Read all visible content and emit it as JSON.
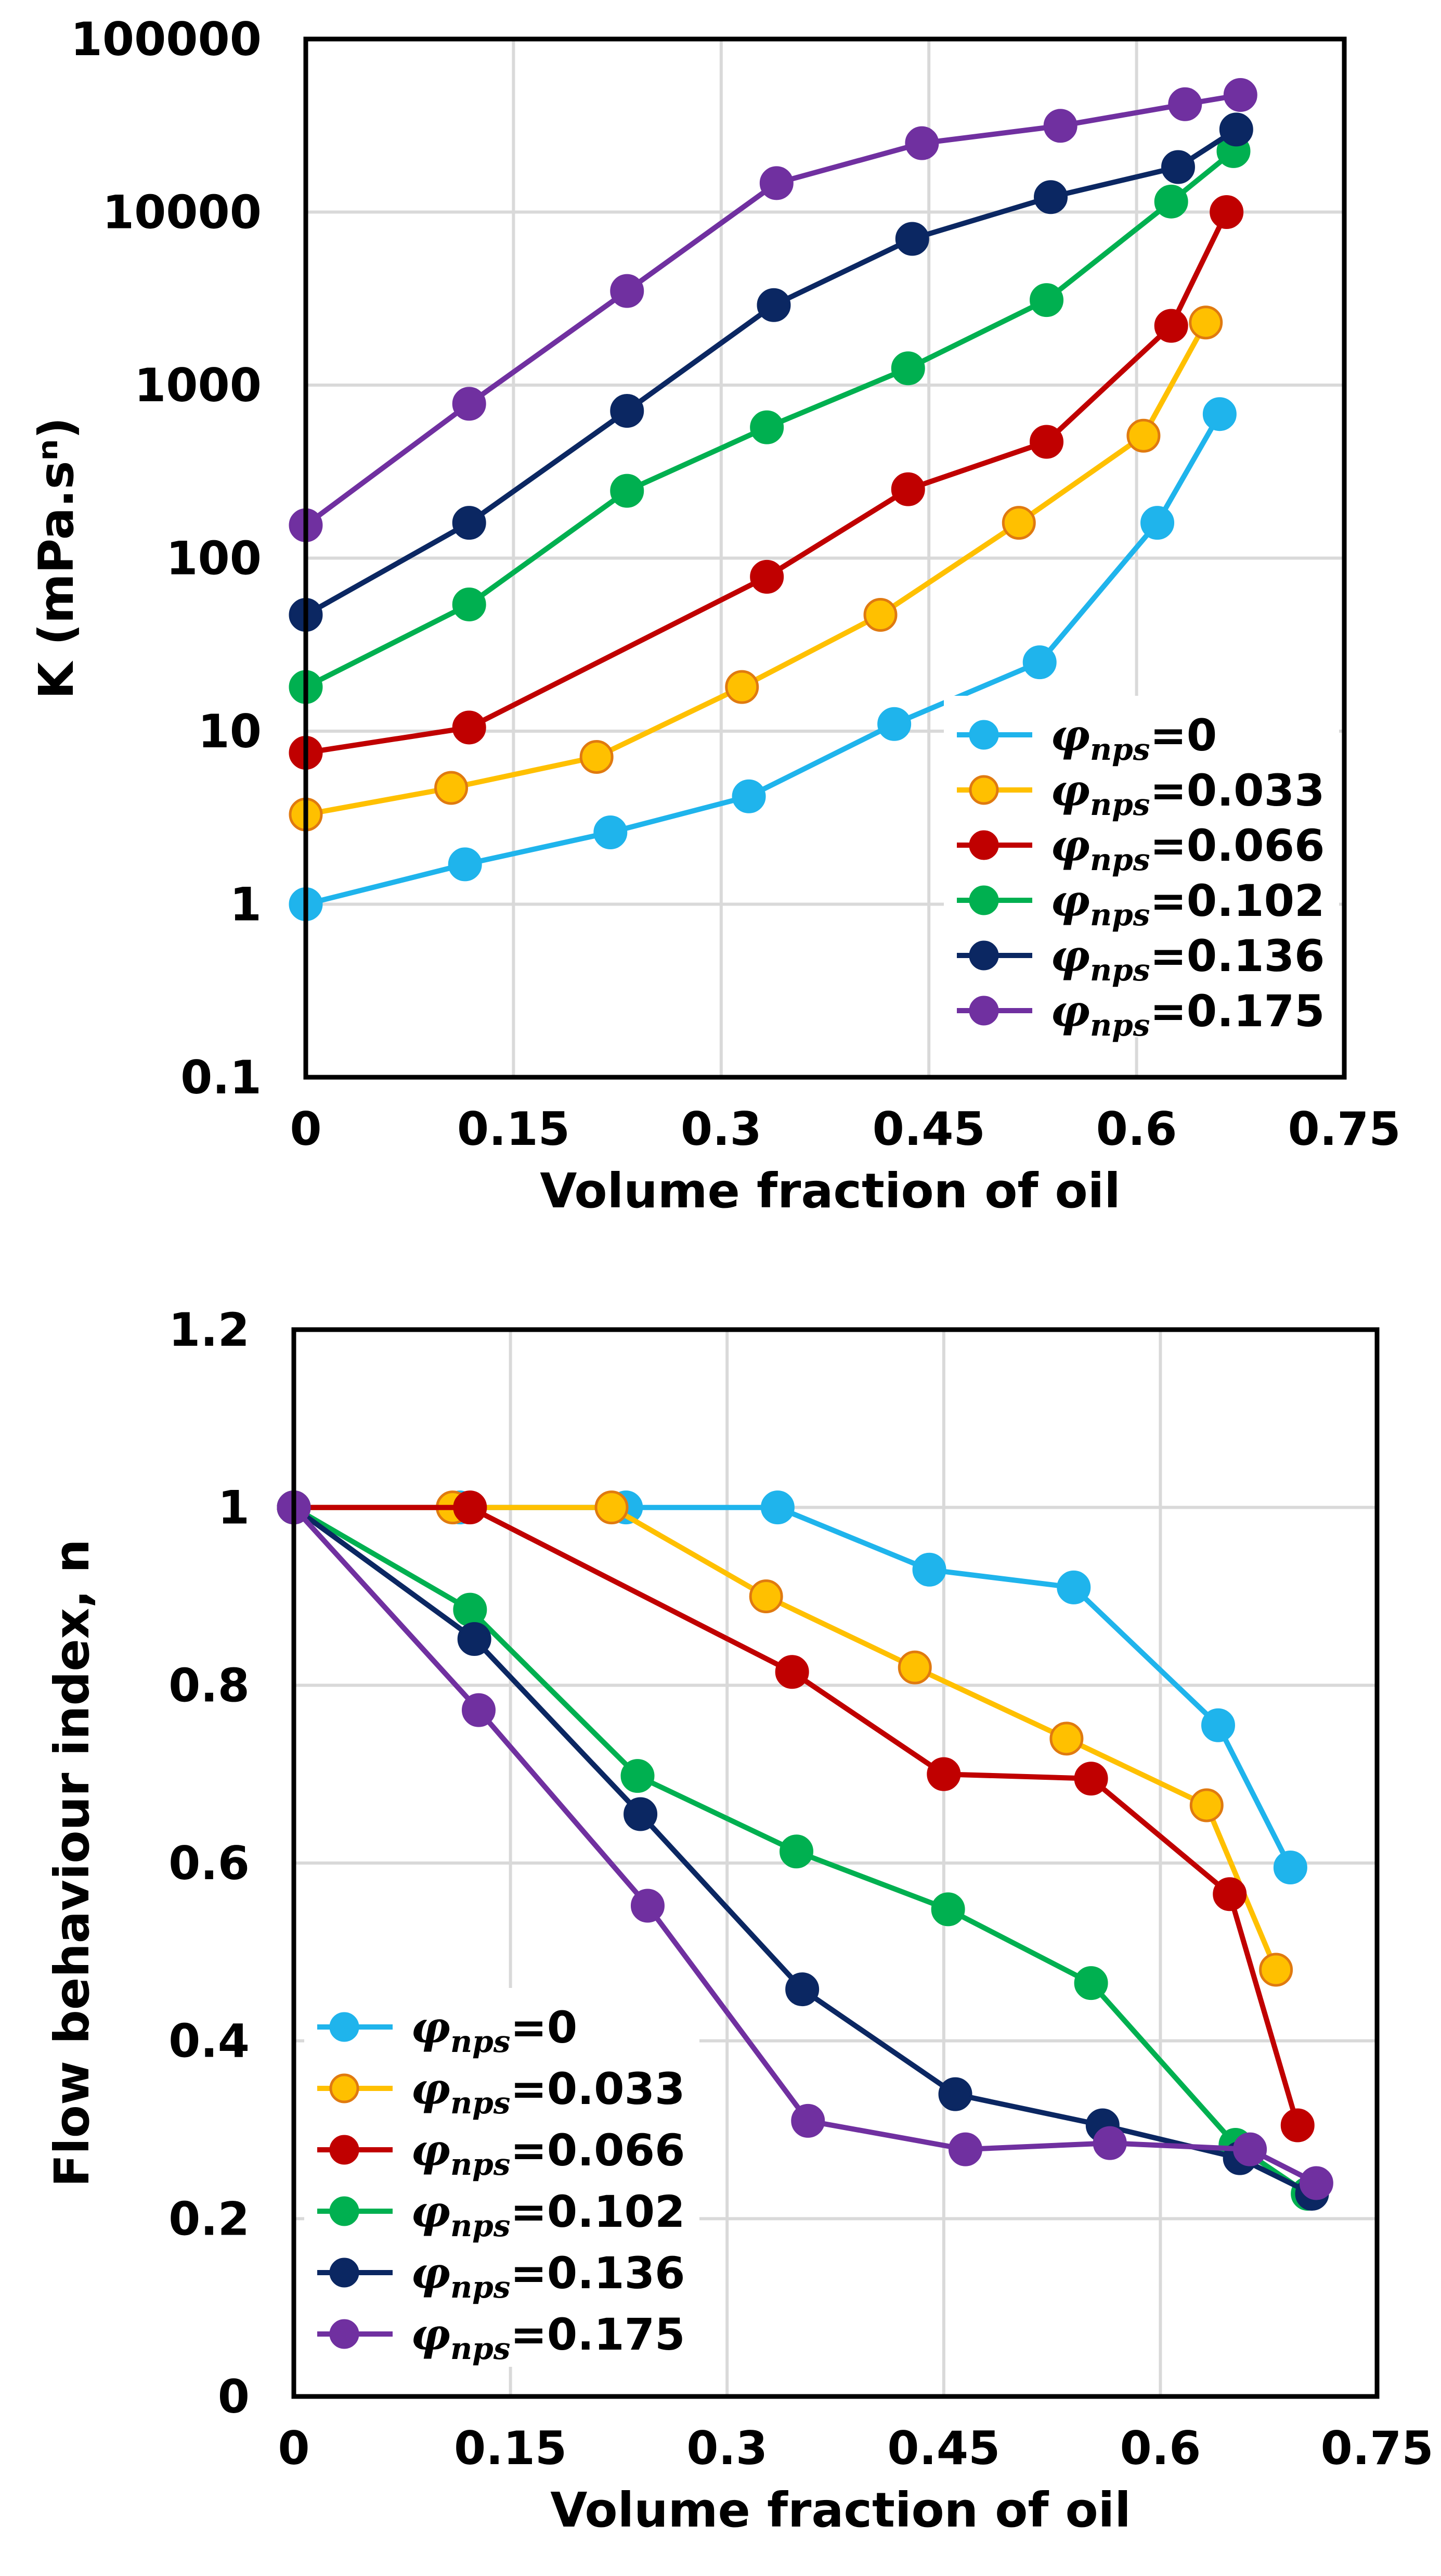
{
  "figure": {
    "legend_symbol": "φ",
    "legend_subscript": "nps"
  },
  "series_styles": [
    {
      "key": "0",
      "color": "#1fb4ec",
      "edge": "#1fb4ec"
    },
    {
      "key": "0.033",
      "color": "#ffc000",
      "edge": "#e07a10"
    },
    {
      "key": "0.066",
      "color": "#c00000",
      "edge": "#c00000"
    },
    {
      "key": "0.102",
      "color": "#00b050",
      "edge": "#00b050"
    },
    {
      "key": "0.136",
      "color": "#0b2762",
      "edge": "#0b2762"
    },
    {
      "key": "0.175",
      "color": "#7030a0",
      "edge": "#7030a0"
    }
  ],
  "chart_data": [
    {
      "type": "line",
      "scale": "log",
      "title": "",
      "xlabel": "Volume fraction of oil",
      "ylabel": "K (mPa.sⁿ)",
      "xlim": [
        0,
        0.75
      ],
      "ylim": [
        0.1,
        100000
      ],
      "xticks": [
        0,
        0.15,
        0.3,
        0.45,
        0.6,
        0.75
      ],
      "xtick_labels": [
        "0",
        "0.15",
        "0.3",
        "0.45",
        "0.6",
        "0.75"
      ],
      "yticks": [
        0.1,
        1,
        10,
        100,
        1000,
        10000,
        100000
      ],
      "ytick_labels": [
        "0.1",
        "1",
        "10",
        "100",
        "1000",
        "10000",
        "100000"
      ],
      "legend_position": "bottom-right",
      "series": [
        {
          "name": "φnps=0",
          "label_value": "=0",
          "x": [
            0,
            0.115,
            0.22,
            0.32,
            0.425,
            0.53,
            0.615,
            0.66
          ],
          "y": [
            1.0,
            1.7,
            2.6,
            4.2,
            11,
            25,
            160,
            680
          ]
        },
        {
          "name": "φnps=0.033",
          "label_value": "=0.033",
          "x": [
            0,
            0.105,
            0.21,
            0.315,
            0.415,
            0.515,
            0.605,
            0.65
          ],
          "y": [
            3.3,
            4.7,
            7.1,
            18,
            47,
            160,
            510,
            2300
          ]
        },
        {
          "name": "φnps=0.066",
          "label_value": "=0.066",
          "x": [
            0,
            0.118,
            0.333,
            0.435,
            0.535,
            0.625,
            0.665
          ],
          "y": [
            7.5,
            10.5,
            78,
            250,
            470,
            2200,
            10000
          ]
        },
        {
          "name": "φnps=0.102",
          "label_value": "=0.102",
          "x": [
            0,
            0.118,
            0.232,
            0.333,
            0.435,
            0.535,
            0.625,
            0.67
          ],
          "y": [
            18,
            54,
            245,
            570,
            1250,
            3100,
            11500,
            22500
          ]
        },
        {
          "name": "φnps=0.136",
          "label_value": "=0.136",
          "x": [
            0,
            0.118,
            0.232,
            0.338,
            0.438,
            0.538,
            0.63,
            0.672
          ],
          "y": [
            47,
            160,
            710,
            2900,
            7000,
            12200,
            18200,
            30000
          ]
        },
        {
          "name": "φnps=0.175",
          "label_value": "=0.175",
          "x": [
            0,
            0.118,
            0.232,
            0.34,
            0.445,
            0.545,
            0.635,
            0.675
          ],
          "y": [
            155,
            780,
            3500,
            14700,
            25000,
            31500,
            42000,
            47500
          ]
        }
      ]
    },
    {
      "type": "line",
      "scale": "linear",
      "title": "",
      "xlabel": "Volume fraction of oil",
      "ylabel": "Flow behaviour index, n",
      "xlim": [
        0,
        0.75
      ],
      "ylim": [
        0,
        1.2
      ],
      "xticks": [
        0,
        0.15,
        0.3,
        0.45,
        0.6,
        0.75
      ],
      "xtick_labels": [
        "0",
        "0.15",
        "0.3",
        "0.45",
        "0.6",
        "0.75"
      ],
      "yticks": [
        0,
        0.2,
        0.4,
        0.6,
        0.8,
        1,
        1.2
      ],
      "ytick_labels": [
        "0",
        "0.2",
        "0.4",
        "0.6",
        "0.8",
        "1",
        "1.2"
      ],
      "legend_position": "bottom-left",
      "series": [
        {
          "name": "φnps=0",
          "label_value": "=0",
          "x": [
            0,
            0.115,
            0.23,
            0.335,
            0.44,
            0.54,
            0.64,
            0.69
          ],
          "y": [
            1.0,
            1.0,
            1.0,
            1.0,
            0.93,
            0.91,
            0.755,
            0.595
          ]
        },
        {
          "name": "φnps=0.033",
          "label_value": "=0.033",
          "x": [
            0,
            0.11,
            0.22,
            0.327,
            0.43,
            0.535,
            0.632,
            0.68
          ],
          "y": [
            1.0,
            1.0,
            1.0,
            0.9,
            0.82,
            0.74,
            0.665,
            0.48
          ]
        },
        {
          "name": "φnps=0.066",
          "label_value": "=0.066",
          "x": [
            0,
            0.122,
            0.345,
            0.45,
            0.552,
            0.648,
            0.695
          ],
          "y": [
            1.0,
            1.0,
            0.815,
            0.7,
            0.695,
            0.565,
            0.305
          ]
        },
        {
          "name": "φnps=0.102",
          "label_value": "=0.102",
          "x": [
            0,
            0.122,
            0.238,
            0.348,
            0.453,
            0.552,
            0.652,
            0.702
          ],
          "y": [
            1.0,
            0.885,
            0.698,
            0.613,
            0.548,
            0.465,
            0.283,
            0.228
          ]
        },
        {
          "name": "φnps=0.136",
          "label_value": "=0.136",
          "x": [
            0,
            0.125,
            0.24,
            0.352,
            0.458,
            0.56,
            0.655,
            0.705
          ],
          "y": [
            1.0,
            0.852,
            0.655,
            0.458,
            0.34,
            0.305,
            0.268,
            0.228
          ]
        },
        {
          "name": "φnps=0.175",
          "label_value": "=0.175",
          "x": [
            0,
            0.128,
            0.245,
            0.356,
            0.465,
            0.565,
            0.662,
            0.708
          ],
          "y": [
            1.0,
            0.772,
            0.552,
            0.31,
            0.278,
            0.285,
            0.278,
            0.24
          ]
        }
      ]
    }
  ]
}
